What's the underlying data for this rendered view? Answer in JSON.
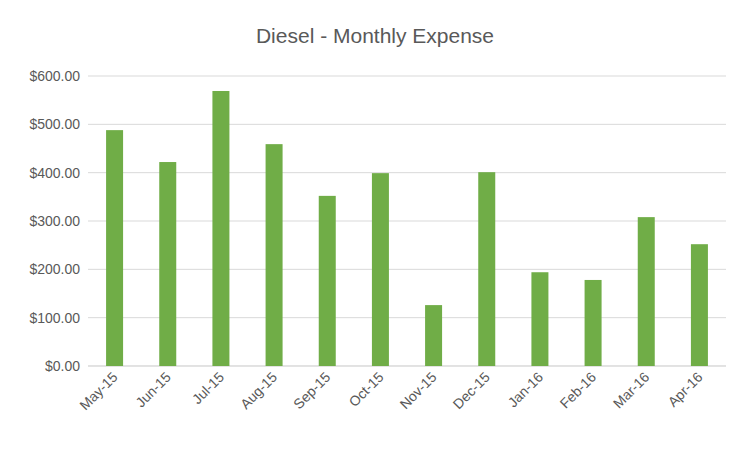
{
  "chart_data": {
    "type": "bar",
    "title": "Diesel - Monthly Expense",
    "categories": [
      "May-15",
      "Jun-15",
      "Jul-15",
      "Aug-15",
      "Sep-15",
      "Oct-15",
      "Nov-15",
      "Dec-15",
      "Jan-16",
      "Feb-16",
      "Mar-16",
      "Apr-16"
    ],
    "values": [
      488,
      422,
      569,
      459,
      352,
      399,
      126,
      401,
      194,
      178,
      308,
      252
    ],
    "color": "#70ad47",
    "ylim": [
      0,
      600
    ],
    "yticks": [
      {
        "value": 0,
        "label": "$0.00"
      },
      {
        "value": 100,
        "label": "$100.00"
      },
      {
        "value": 200,
        "label": "$200.00"
      },
      {
        "value": 300,
        "label": "$300.00"
      },
      {
        "value": 400,
        "label": "$400.00"
      },
      {
        "value": 500,
        "label": "$500.00"
      },
      {
        "value": 600,
        "label": "$600.00"
      }
    ],
    "grid": true
  }
}
